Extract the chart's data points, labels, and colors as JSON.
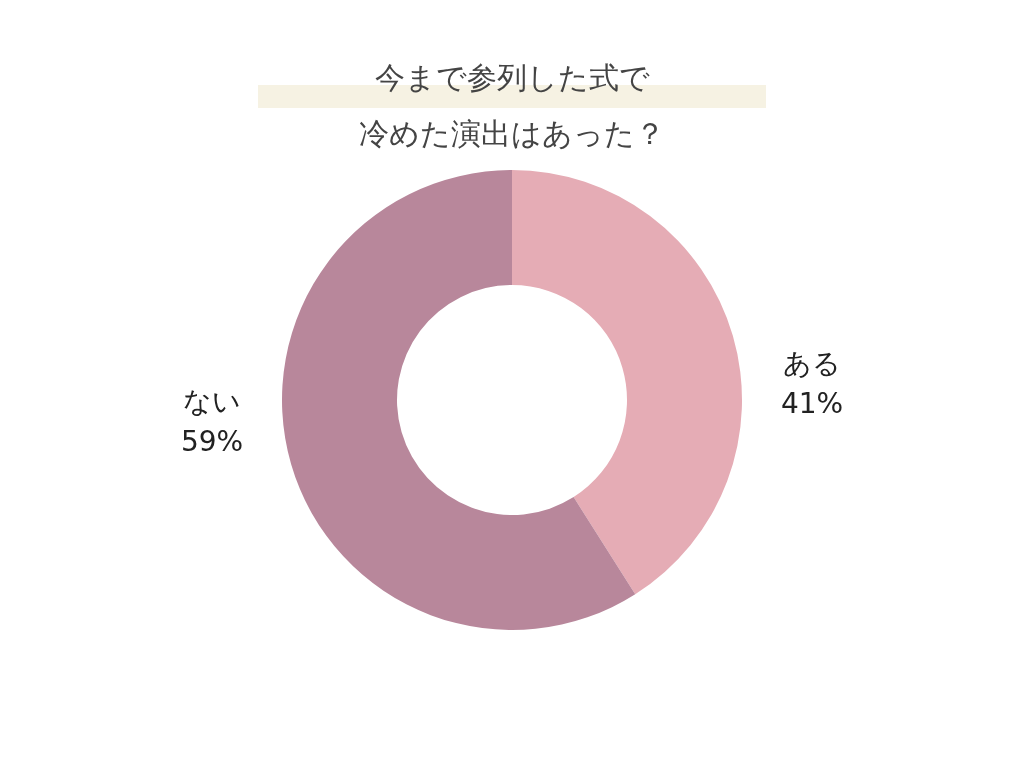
{
  "chart_data": {
    "type": "donut",
    "title": "今まで参列した式で冷めた演出はあった？",
    "categories": [
      "ある",
      "ない"
    ],
    "values": [
      41,
      59
    ],
    "colors": [
      "#e5acb5",
      "#b8879b"
    ],
    "value_labels": [
      "41%",
      "59%"
    ]
  }
}
